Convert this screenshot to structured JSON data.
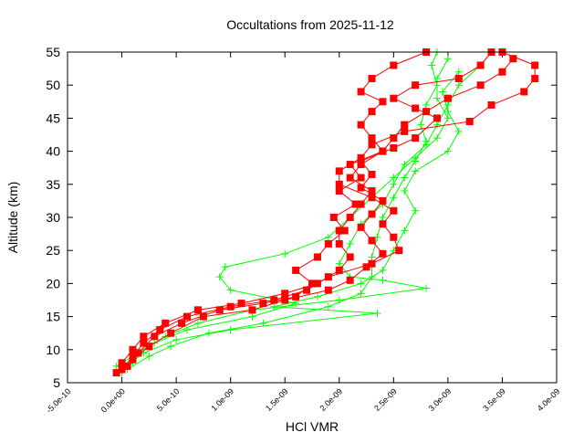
{
  "chart_data": {
    "type": "line",
    "title": "Occultations from 2025-11-12",
    "xlabel": "HCl VMR",
    "ylabel": "Altitude (km)",
    "xlim": [
      -5e-10,
      4e-09
    ],
    "ylim": [
      5,
      55
    ],
    "xticks": [
      -5e-10,
      0,
      5e-10,
      1e-09,
      1.5e-09,
      2e-09,
      2.5e-09,
      3e-09,
      3.5e-09,
      4e-09
    ],
    "xtick_labels": [
      "-5.0e-10",
      "0.0e+00",
      "5.0e-10",
      "1.0e-09",
      "1.5e-09",
      "2.0e-09",
      "2.5e-09",
      "3.0e-09",
      "3.5e-09",
      "4.0e-09"
    ],
    "yticks": [
      5,
      10,
      15,
      20,
      25,
      30,
      35,
      40,
      45,
      50,
      55
    ],
    "ytick_labels": [
      "5",
      "10",
      "15",
      "20",
      "25",
      "30",
      "35",
      "40",
      "45",
      "50",
      "55"
    ],
    "grid": false,
    "legend": "none",
    "x_unit_multiplier": 1e-09,
    "series": [
      {
        "color": "#00ff00",
        "marker": "plus",
        "points": [
          [
            0,
            6.5
          ],
          [
            0.1,
            8
          ],
          [
            0.2,
            10
          ],
          [
            0.4,
            12
          ],
          [
            0.7,
            14
          ],
          [
            1.2,
            16
          ],
          [
            2.0,
            17.5
          ],
          [
            2.8,
            19.3
          ],
          [
            2.4,
            20.5
          ],
          [
            2.1,
            21
          ],
          [
            2.0,
            23
          ],
          [
            2.1,
            26
          ],
          [
            2.2,
            29
          ],
          [
            2.4,
            32
          ],
          [
            2.5,
            35
          ],
          [
            2.6,
            38
          ],
          [
            2.8,
            41
          ],
          [
            2.9,
            44
          ],
          [
            3.0,
            47
          ],
          [
            3.1,
            50
          ],
          [
            3.3,
            53
          ],
          [
            3.4,
            55
          ]
        ]
      },
      {
        "color": "#00ff00",
        "marker": "plus",
        "points": [
          [
            -0.05,
            7.5
          ],
          [
            0.1,
            9
          ],
          [
            0.3,
            11
          ],
          [
            0.6,
            13
          ],
          [
            1.2,
            15
          ],
          [
            1.6,
            17
          ],
          [
            1.0,
            19
          ],
          [
            0.9,
            21
          ],
          [
            0.95,
            22.5
          ],
          [
            1.5,
            24.5
          ],
          [
            1.9,
            27
          ],
          [
            2.1,
            30
          ],
          [
            2.3,
            33
          ],
          [
            2.5,
            36
          ],
          [
            2.7,
            39
          ],
          [
            2.9,
            42
          ],
          [
            3.0,
            45
          ],
          [
            2.9,
            48
          ],
          [
            2.9,
            51
          ],
          [
            3.0,
            54
          ]
        ]
      },
      {
        "color": "#00ff00",
        "marker": "plus",
        "points": [
          [
            0,
            7
          ],
          [
            0.2,
            9.5
          ],
          [
            0.5,
            11.5
          ],
          [
            1.0,
            13
          ],
          [
            2.35,
            15.5
          ],
          [
            1.4,
            16.5
          ],
          [
            1.8,
            18
          ],
          [
            2.2,
            20
          ],
          [
            2.4,
            22
          ],
          [
            2.5,
            25
          ],
          [
            2.6,
            28
          ],
          [
            2.7,
            31
          ],
          [
            2.6,
            34
          ],
          [
            2.7,
            37
          ],
          [
            3.0,
            40
          ],
          [
            3.1,
            43
          ],
          [
            3.0,
            46
          ],
          [
            2.95,
            49
          ],
          [
            3.1,
            52
          ]
        ]
      },
      {
        "color": "#00ff00",
        "marker": "plus",
        "points": [
          [
            0.05,
            7
          ],
          [
            0.25,
            9
          ],
          [
            0.45,
            10.5
          ],
          [
            0.8,
            12.5
          ],
          [
            1.3,
            14
          ],
          [
            1.9,
            16.5
          ],
          [
            2.2,
            18.5
          ],
          [
            2.3,
            21
          ],
          [
            2.3,
            24
          ],
          [
            2.35,
            27
          ],
          [
            2.4,
            30
          ],
          [
            2.5,
            33
          ],
          [
            2.6,
            36
          ],
          [
            2.7,
            38.5
          ],
          [
            2.8,
            41.5
          ],
          [
            2.75,
            44
          ],
          [
            2.8,
            47
          ],
          [
            2.9,
            50
          ],
          [
            2.85,
            53
          ],
          [
            2.9,
            55
          ]
        ]
      },
      {
        "color": "#ff0000",
        "marker": "square",
        "points": [
          [
            -0.05,
            6.5
          ],
          [
            0,
            8
          ],
          [
            0.1,
            10
          ],
          [
            0.2,
            12
          ],
          [
            0.4,
            14
          ],
          [
            0.7,
            16
          ],
          [
            1.1,
            17
          ],
          [
            1.5,
            18.5
          ],
          [
            1.8,
            20
          ],
          [
            2.0,
            22
          ],
          [
            2.1,
            24
          ],
          [
            2.0,
            26
          ],
          [
            2.0,
            28
          ],
          [
            2.1,
            30
          ],
          [
            2.2,
            32
          ],
          [
            2.3,
            34
          ],
          [
            2.1,
            36
          ],
          [
            2.2,
            38
          ],
          [
            2.4,
            40
          ],
          [
            2.5,
            42
          ],
          [
            2.6,
            44
          ],
          [
            2.8,
            46
          ],
          [
            3.0,
            48
          ],
          [
            3.3,
            50
          ],
          [
            3.5,
            52
          ],
          [
            3.6,
            54
          ]
        ]
      },
      {
        "color": "#ff0000",
        "marker": "square",
        "points": [
          [
            0,
            7
          ],
          [
            0.1,
            9
          ],
          [
            0.2,
            11
          ],
          [
            0.35,
            13
          ],
          [
            0.6,
            15
          ],
          [
            1.0,
            16.5
          ],
          [
            1.4,
            17.5
          ],
          [
            1.7,
            19
          ],
          [
            1.9,
            21
          ],
          [
            2.3,
            23
          ],
          [
            2.55,
            25
          ],
          [
            2.5,
            27
          ],
          [
            2.4,
            29
          ],
          [
            2.5,
            31
          ],
          [
            2.3,
            33
          ],
          [
            2.0,
            35
          ],
          [
            2.0,
            37
          ],
          [
            2.2,
            39
          ],
          [
            2.3,
            41
          ],
          [
            2.6,
            43
          ],
          [
            3.2,
            44.5
          ],
          [
            3.4,
            47
          ],
          [
            3.7,
            49
          ],
          [
            3.8,
            51
          ],
          [
            3.8,
            53
          ],
          [
            3.5,
            55
          ]
        ]
      },
      {
        "color": "#ff0000",
        "marker": "square",
        "points": [
          [
            0.05,
            7.5
          ],
          [
            0.15,
            9.5
          ],
          [
            0.3,
            12
          ],
          [
            0.55,
            14
          ],
          [
            0.9,
            16
          ],
          [
            1.3,
            17
          ],
          [
            1.6,
            18
          ],
          [
            1.75,
            20
          ],
          [
            1.6,
            22
          ],
          [
            1.8,
            24
          ],
          [
            1.9,
            26
          ],
          [
            2.05,
            28
          ],
          [
            1.95,
            30
          ],
          [
            2.15,
            32
          ],
          [
            2.0,
            34
          ],
          [
            2.2,
            36
          ],
          [
            2.1,
            38
          ],
          [
            2.4,
            40
          ],
          [
            2.3,
            42
          ],
          [
            2.2,
            44
          ],
          [
            2.3,
            46
          ],
          [
            2.4,
            47.5
          ],
          [
            2.2,
            49
          ],
          [
            2.3,
            51
          ],
          [
            2.5,
            53
          ],
          [
            2.8,
            55
          ]
        ]
      },
      {
        "color": "#ff0000",
        "marker": "square",
        "points": [
          [
            0.1,
            8.5
          ],
          [
            0.25,
            10.5
          ],
          [
            0.45,
            12.5
          ],
          [
            0.75,
            15
          ],
          [
            1.2,
            16
          ],
          [
            1.5,
            17.5
          ],
          [
            1.9,
            19
          ],
          [
            2.1,
            20.5
          ],
          [
            2.25,
            22.5
          ],
          [
            2.4,
            24.5
          ],
          [
            2.3,
            26.5
          ],
          [
            2.2,
            28.5
          ],
          [
            2.3,
            30.5
          ],
          [
            2.4,
            32.5
          ],
          [
            2.2,
            34.5
          ],
          [
            2.3,
            36.5
          ],
          [
            2.2,
            38.5
          ],
          [
            2.5,
            40.5
          ],
          [
            2.7,
            42
          ],
          [
            2.9,
            45
          ],
          [
            2.7,
            46.5
          ],
          [
            2.5,
            48
          ],
          [
            2.7,
            50
          ],
          [
            3.1,
            51
          ],
          [
            3.3,
            53
          ],
          [
            3.4,
            55
          ]
        ]
      }
    ]
  }
}
